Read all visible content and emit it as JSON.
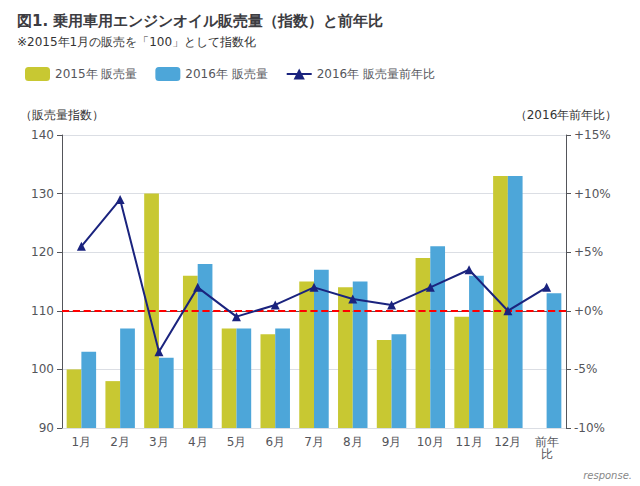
{
  "chart_data": {
    "type": "bar",
    "title": "図1. 乗用車用エンジンオイル販売量（指数）と前年比",
    "subtitle": "※2015年1月の販売を「100」として指数化",
    "ylabel": "（販売量指数）",
    "y2label": "（2016年前年比）",
    "categories": [
      "1月",
      "2月",
      "3月",
      "4月",
      "5月",
      "6月",
      "7月",
      "8月",
      "9月",
      "10月",
      "11月",
      "12月",
      "前年\n比"
    ],
    "series": [
      {
        "name": "2015年 販売量",
        "type": "bar",
        "color": "#c8c832",
        "values": [
          100,
          98,
          130,
          116,
          107,
          106,
          115,
          114,
          105,
          119,
          109,
          133,
          null
        ]
      },
      {
        "name": "2016年 販売量",
        "type": "bar",
        "color": "#4da6d9",
        "values": [
          103,
          107,
          102,
          118,
          107,
          107,
          117,
          115,
          106,
          121,
          116,
          133,
          113
        ]
      },
      {
        "name": "2016年 販売量前年比",
        "type": "line",
        "axis": "y2",
        "color": "#1a237e",
        "marker": "triangle",
        "values": [
          5.5,
          9.5,
          -3.5,
          2.0,
          -0.5,
          0.5,
          2.0,
          1.0,
          0.5,
          2.0,
          3.5,
          0.0,
          2.0
        ]
      }
    ],
    "ylim": [
      90,
      140
    ],
    "yticks": [
      90,
      100,
      110,
      120,
      130,
      140
    ],
    "y2lim": [
      -10,
      15
    ],
    "y2ticks": [
      {
        "value": -10,
        "label": "-10%"
      },
      {
        "value": -5,
        "label": "-5%"
      },
      {
        "value": 0,
        "label": "+0%"
      },
      {
        "value": 5,
        "label": "+5%"
      },
      {
        "value": 10,
        "label": "+10%"
      },
      {
        "value": 15,
        "label": "+15%"
      }
    ],
    "grid": true,
    "legend": "upper left",
    "reference_line": {
      "axis": "y2",
      "value": 0,
      "color": "#ff0000",
      "line_style": "dashed"
    },
    "annotation": "response."
  }
}
